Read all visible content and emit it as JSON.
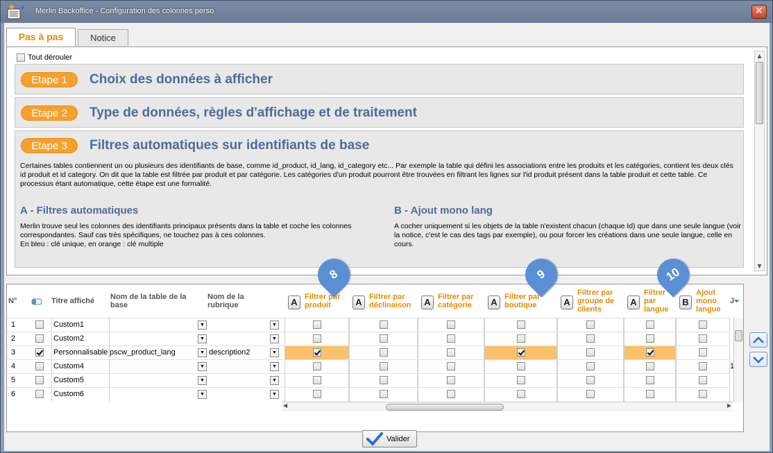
{
  "window": {
    "title": "Merlin Backoffice - Configuration des colonnes perso"
  },
  "tabs": [
    {
      "label": "Pas à pas",
      "active": true
    },
    {
      "label": "Notice",
      "active": false
    }
  ],
  "tout_derouler": "Tout dérouler",
  "steps": [
    {
      "badge": "Etape 1",
      "title": "Choix des données à afficher"
    },
    {
      "badge": "Etape 2",
      "title": "Type de données, règles d'affichage et de traitement"
    },
    {
      "badge": "Etape 3",
      "title": "Filtres automatiques sur identifiants de base",
      "description": "Certaines tables contiennent un ou plusieurs des identifiants de base, comme id_product, id_lang, id_category etc... Par exemple la table qui défini les associations entre les produits et les catégories, contient les deux clés id produit et id category. On dit que la table est filtrée par produit et par catégorie. Les catégories d'un produit pourront être trouvées en filtrant les lignes sur l'id produit présent dans la table produit et cette table. Ce processus étant automatique, cette étape est une formalité.",
      "section_a": {
        "title": "A - Filtres automatiques",
        "text": "Merlin trouve seul les colonnes des identifiants principaux présents dans la table et coche les colonnes correspondantes. Sauf cas très spécifiques, ne touchez pas à ces colonnes.\nEn bleu : clé unique, en orange : clé multiple"
      },
      "section_b": {
        "title": "B - Ajout mono lang",
        "text": "A cocher uniquement si les objets de la table n'existent chacun (chaque Id) que dans une seule langue (voir la notice, c'est le cas des tags par exemple), ou pour forcer les créations dans une seule langue, celle en cours."
      }
    }
  ],
  "grid": {
    "columns": {
      "num": "N°",
      "titre": "Titre affiché",
      "table": [
        "Nom de la table de la",
        "base"
      ],
      "rubrique": [
        "Nom de la",
        "rubrique"
      ],
      "filters": [
        {
          "tag": "A",
          "label": [
            "Filtrer par",
            "produit"
          ]
        },
        {
          "tag": "A",
          "label": [
            "Filtrer par",
            "déclinaison"
          ]
        },
        {
          "tag": "A",
          "label": [
            "Filtrer par",
            "catégorie"
          ]
        },
        {
          "tag": "A",
          "label": [
            "Filtrer par",
            "boutique"
          ]
        },
        {
          "tag": "A",
          "label": [
            "Filtrer par",
            "groupe de",
            "clients"
          ]
        },
        {
          "tag": "A",
          "label": [
            "Filtrer",
            "par",
            "langue"
          ]
        },
        {
          "tag": "B",
          "label": [
            "Ajout",
            "mono",
            "langue"
          ]
        }
      ],
      "extra": "J"
    },
    "rows": [
      {
        "num": "1",
        "checked": false,
        "titre": "Custom1",
        "table": "",
        "rubrique": "",
        "filters": [
          false,
          false,
          false,
          false,
          false,
          false,
          false
        ],
        "extra": ""
      },
      {
        "num": "2",
        "checked": false,
        "titre": "Custom2",
        "table": "",
        "rubrique": "",
        "filters": [
          false,
          false,
          false,
          false,
          false,
          false,
          false
        ],
        "extra": ""
      },
      {
        "num": "3",
        "checked": true,
        "titre": "Personnalisable",
        "table": "pscw_product_lang",
        "rubrique": "description2",
        "filters": [
          true,
          false,
          false,
          true,
          false,
          true,
          false
        ],
        "extra": ""
      },
      {
        "num": "4",
        "checked": false,
        "titre": "Custom4",
        "table": "",
        "rubrique": "",
        "filters": [
          false,
          false,
          false,
          false,
          false,
          false,
          false
        ],
        "extra": "1"
      },
      {
        "num": "5",
        "checked": false,
        "titre": "Custom5",
        "table": "",
        "rubrique": "",
        "filters": [
          false,
          false,
          false,
          false,
          false,
          false,
          false
        ],
        "extra": ""
      },
      {
        "num": "6",
        "checked": false,
        "titre": "Custom6",
        "table": "",
        "rubrique": "",
        "filters": [
          false,
          false,
          false,
          false,
          false,
          false,
          false
        ],
        "extra": ""
      }
    ]
  },
  "markers": [
    "8",
    "9",
    "10"
  ],
  "valider": "Valider",
  "colors": {
    "accent_orange": "#e88a00",
    "badge_orange": "#f7a12d",
    "highlight": "#fcc16b",
    "step_title_blue": "#4f6a9a",
    "marker_blue": "#5a8fd4"
  },
  "icons": [
    "app-icon",
    "close-icon",
    "checkbox-icon",
    "dropdown-arrow-icon",
    "scroll-up-icon",
    "scroll-down-icon",
    "check-icon"
  ]
}
